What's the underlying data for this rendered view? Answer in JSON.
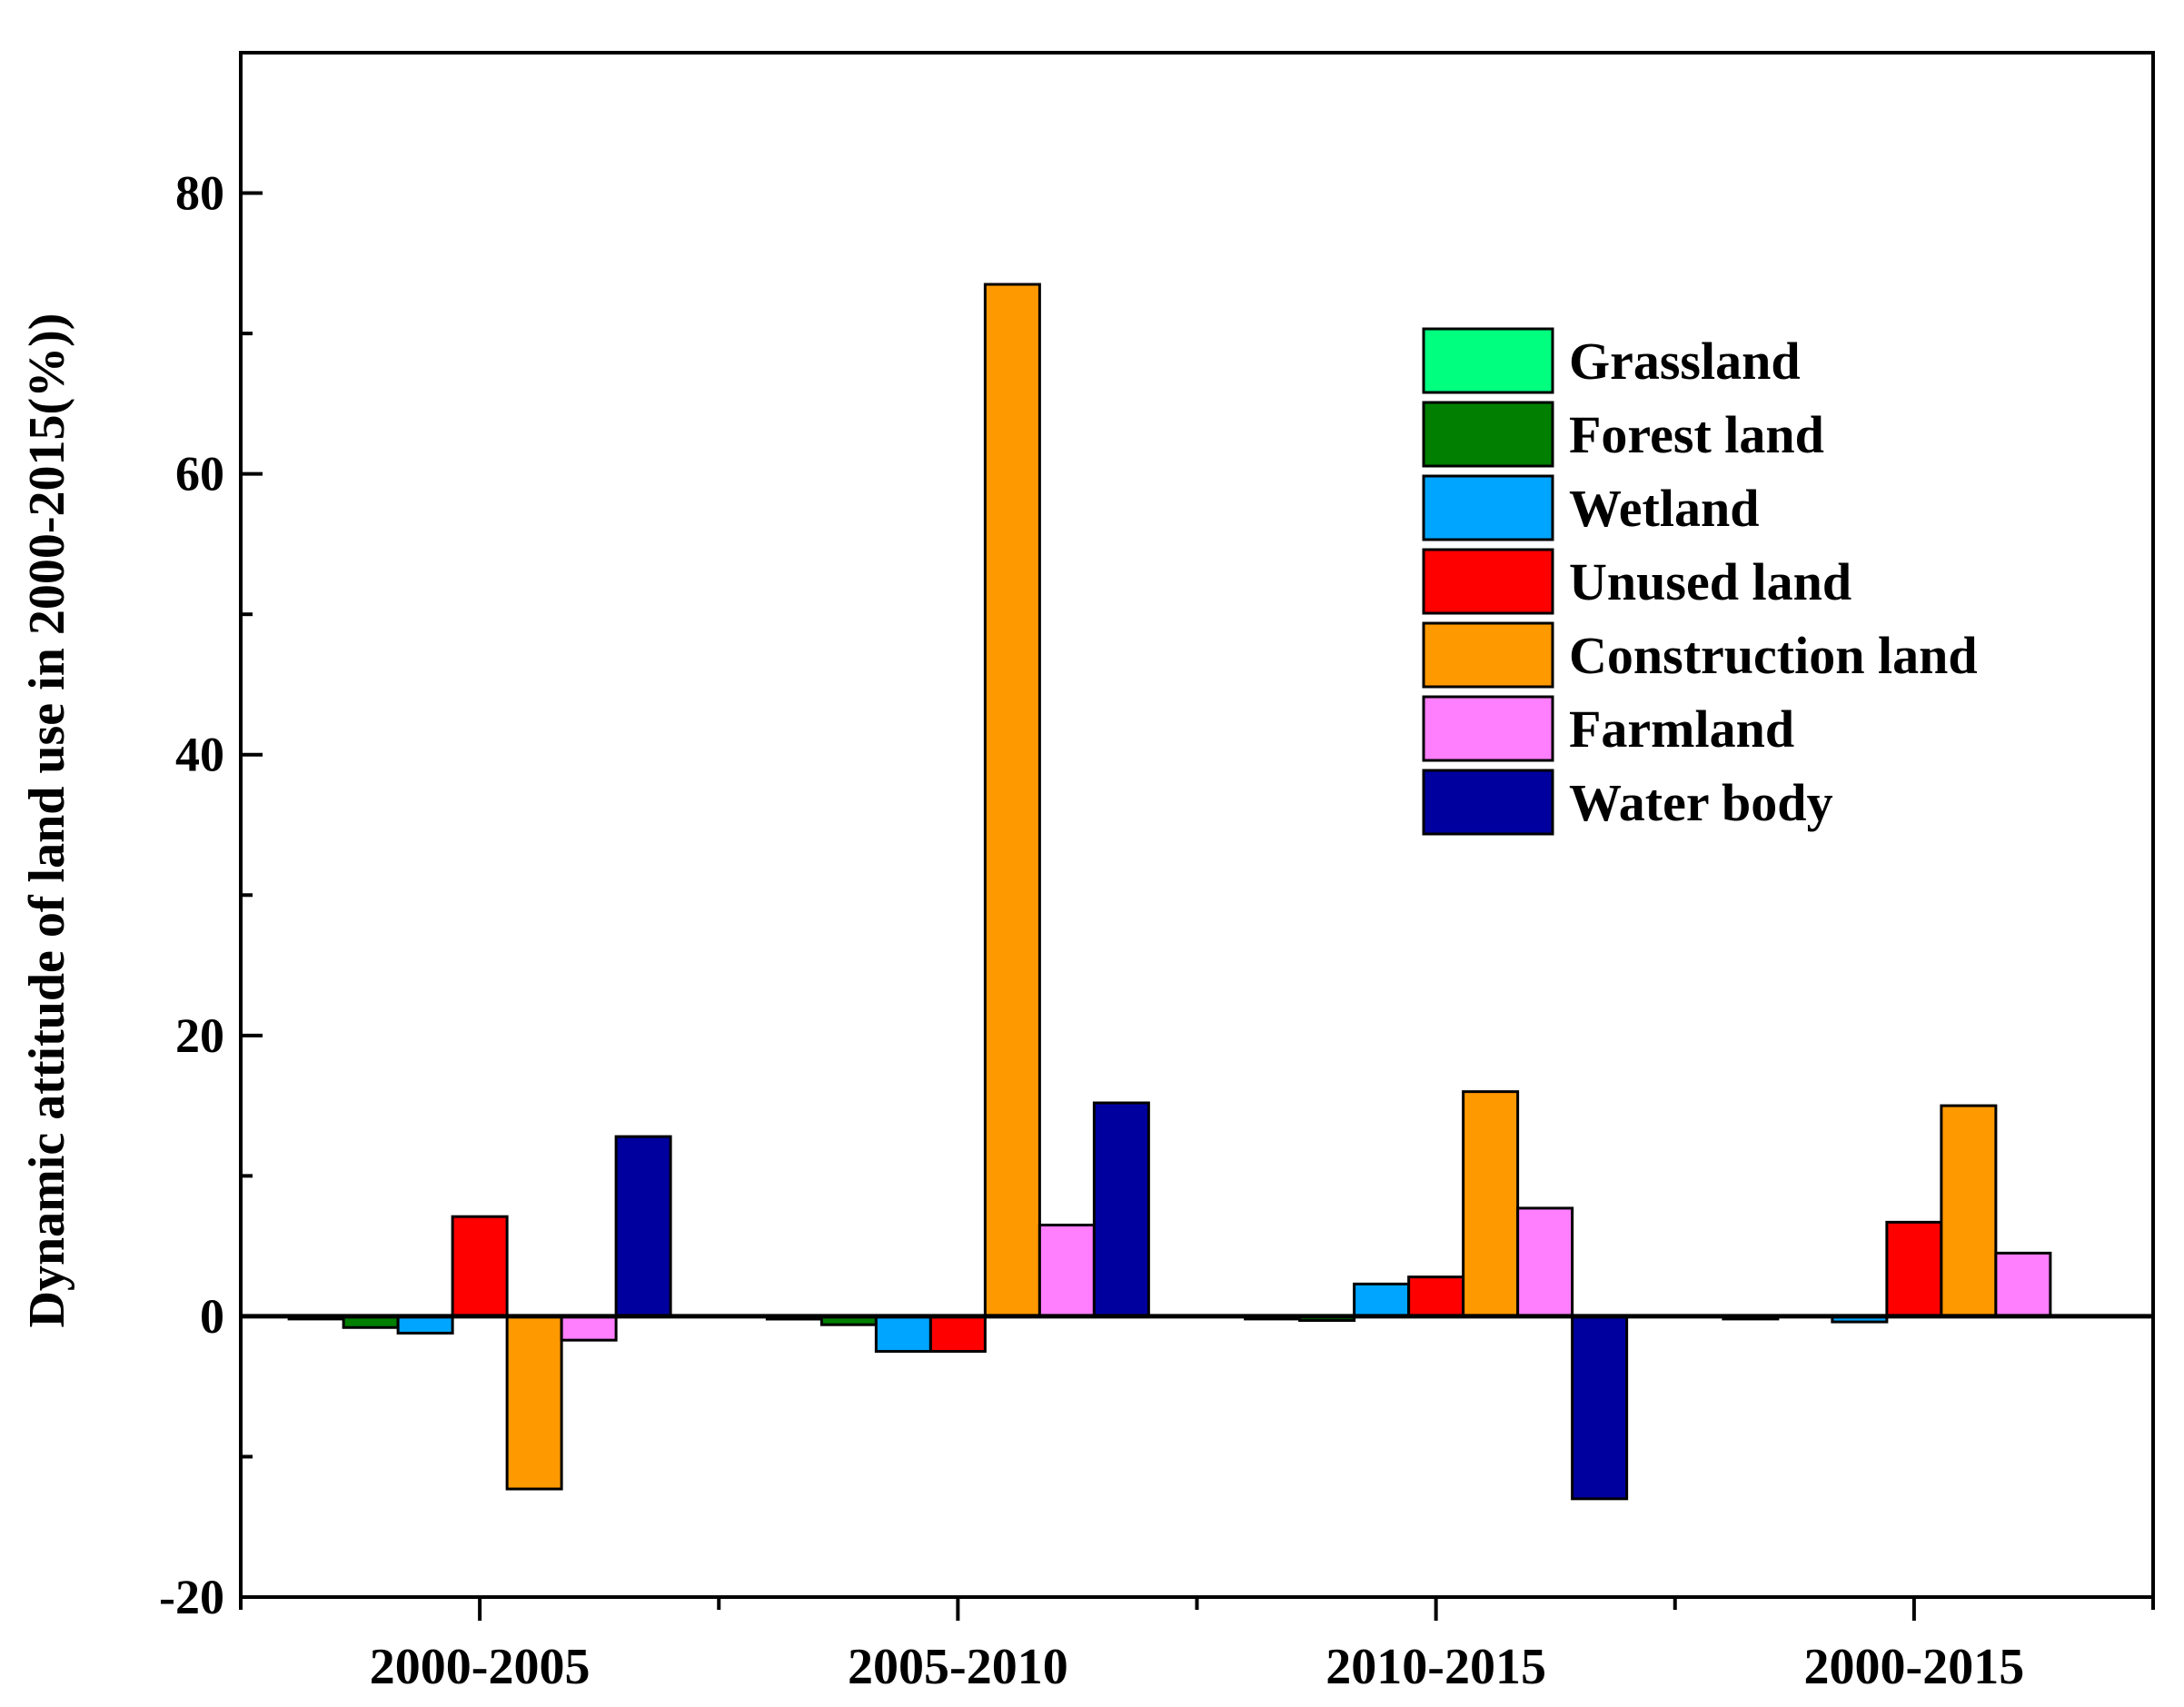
{
  "chart_data": {
    "type": "bar",
    "title": "",
    "xlabel": "",
    "ylabel": "Dynamic attitude of land use  in 2000-2015(%))",
    "ylim": [
      -20,
      90
    ],
    "yticks": [
      -20,
      0,
      20,
      40,
      60,
      80
    ],
    "ytick_labels": [
      "-20",
      "0",
      "20",
      "40",
      "60",
      "80"
    ],
    "grid": false,
    "legend_position": "top-right",
    "categories": [
      "2000-2005",
      "2005-2010",
      "2010-2015",
      "2000-2015"
    ],
    "series": [
      {
        "name": "Grassland",
        "color": "#00ff7f",
        "values": [
          -0.1,
          -0.2,
          -0.1,
          -0.1
        ]
      },
      {
        "name": "Forest land",
        "color": "#007f00",
        "values": [
          -0.8,
          -0.6,
          -0.3,
          0.0
        ]
      },
      {
        "name": "Wetland",
        "color": "#00a5ff",
        "values": [
          -1.2,
          -2.5,
          2.3,
          -0.4
        ]
      },
      {
        "name": "Unused land",
        "color": "#ff0000",
        "values": [
          7.1,
          -2.5,
          2.8,
          6.7
        ]
      },
      {
        "name": "Construction land",
        "color": "#ff9900",
        "values": [
          -12.3,
          73.5,
          16.0,
          15.0
        ]
      },
      {
        "name": "Farmland",
        "color": "#ff7fff",
        "values": [
          -1.7,
          6.5,
          7.7,
          4.5
        ]
      },
      {
        "name": "Water body",
        "color": "#00009f",
        "values": [
          12.8,
          15.2,
          -13.0,
          0.0
        ]
      }
    ]
  }
}
